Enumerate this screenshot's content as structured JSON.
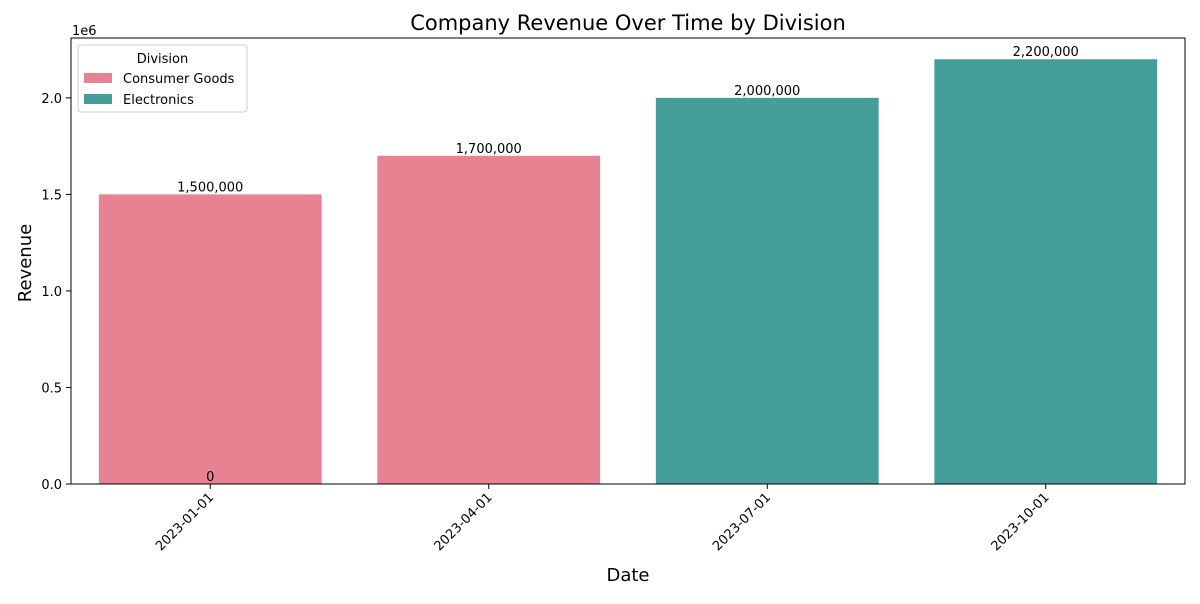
{
  "chart_data": {
    "type": "bar",
    "title": "Company Revenue Over Time by Division",
    "xlabel": "Date",
    "ylabel": "Revenue",
    "y_offset_label": "1e6",
    "categories": [
      "2023-01-01",
      "2023-04-01",
      "2023-07-01",
      "2023-10-01"
    ],
    "series": [
      {
        "name": "Consumer Goods",
        "color": "#e78293",
        "values": [
          1500000,
          1700000,
          0,
          0
        ]
      },
      {
        "name": "Electronics",
        "color": "#469e98",
        "values": [
          0,
          0,
          2000000,
          2200000
        ]
      }
    ],
    "bar_labels": [
      "1,500,000",
      "1,700,000",
      "2,000,000",
      "2,200,000"
    ],
    "extra_label": {
      "text": "0",
      "category": "2023-01-01"
    },
    "ylim": [
      0,
      2310000
    ],
    "yticks": [
      0,
      500000,
      1000000,
      1500000,
      2000000
    ],
    "ytick_labels": [
      "0.0",
      "0.5",
      "1.0",
      "1.5",
      "2.0"
    ],
    "legend": {
      "title": "Division",
      "location": "top-left",
      "entries": [
        "Consumer Goods",
        "Electronics"
      ]
    },
    "grid": false
  }
}
